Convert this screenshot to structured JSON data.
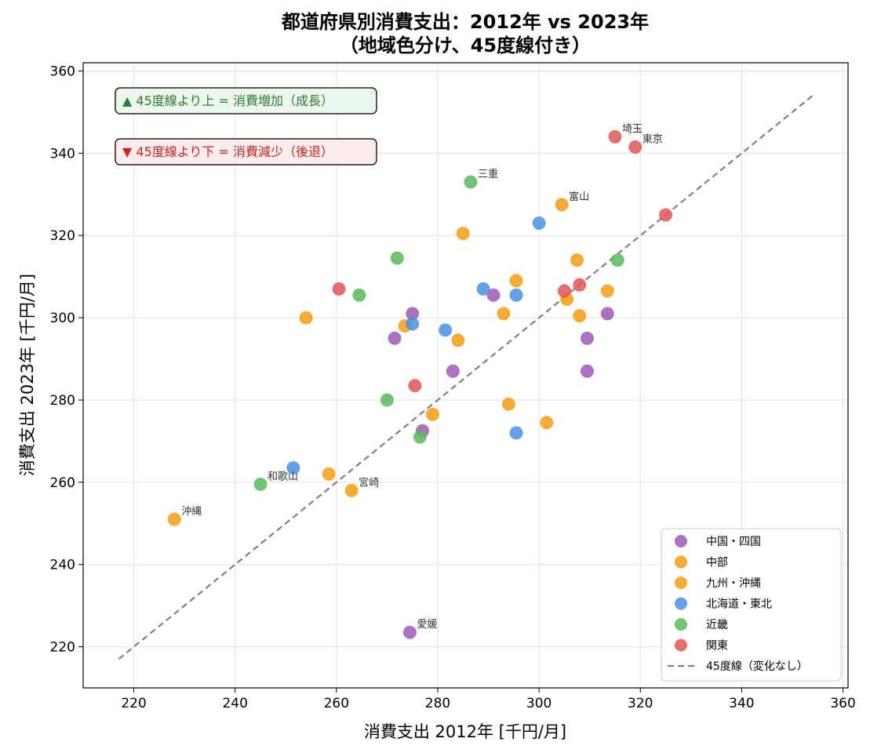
{
  "chart_data": {
    "type": "scatter",
    "title": "都道府県別消費支出：2012年 vs 2023年",
    "subtitle": "（地域色分け、45度線付き）",
    "xlabel": "消費支出 2012年 [千円/月]",
    "ylabel": "消費支出 2023年 [千円/月]",
    "xlim": [
      210,
      361
    ],
    "ylim": [
      210,
      362
    ],
    "xticks": [
      220,
      240,
      260,
      280,
      300,
      320,
      340,
      360
    ],
    "yticks": [
      220,
      240,
      260,
      280,
      300,
      320,
      340,
      360
    ],
    "grid": true,
    "legend_position": "lower-right",
    "reference_line": {
      "name": "45度線（変化なし）",
      "from": [
        217,
        217
      ],
      "to": [
        354.5,
        354.5
      ],
      "color": "#808080"
    },
    "annotations": [
      {
        "text": "▲ 45度線より上 = 消費増加（成長）",
        "color": "#2e7d32",
        "fill": "#edf6ec"
      },
      {
        "text": "▼ 45度線より下 = 消費減少（後退）",
        "color": "#c62828",
        "fill": "#fdecec"
      }
    ],
    "series": [
      {
        "name": "中国・四国",
        "color": "#9b59b6",
        "points": [
          {
            "x": 275,
            "y": 301
          },
          {
            "x": 271.5,
            "y": 295
          },
          {
            "x": 277,
            "y": 272.5
          },
          {
            "x": 283,
            "y": 287
          },
          {
            "x": 291,
            "y": 305.5
          },
          {
            "x": 313.5,
            "y": 301
          },
          {
            "x": 309.5,
            "y": 295
          },
          {
            "x": 309.5,
            "y": 287
          },
          {
            "x": 274.5,
            "y": 223.5,
            "label": "愛媛"
          }
        ]
      },
      {
        "name": "中部",
        "color": "#f39c12",
        "points": [
          {
            "x": 254,
            "y": 300
          },
          {
            "x": 273.5,
            "y": 298
          },
          {
            "x": 285,
            "y": 320.5
          },
          {
            "x": 284,
            "y": 294.5
          },
          {
            "x": 295.5,
            "y": 309
          },
          {
            "x": 293,
            "y": 301
          },
          {
            "x": 304.5,
            "y": 327.5,
            "label": "富山"
          },
          {
            "x": 307.5,
            "y": 314
          },
          {
            "x": 305.5,
            "y": 304.5
          },
          {
            "x": 308,
            "y": 300.5
          }
        ]
      },
      {
        "name": "九州・沖縄",
        "color": "#f39c12",
        "points": [
          {
            "x": 228,
            "y": 251,
            "label": "沖縄"
          },
          {
            "x": 258.5,
            "y": 262
          },
          {
            "x": 263,
            "y": 258,
            "label": "宮崎"
          },
          {
            "x": 279,
            "y": 276.5
          },
          {
            "x": 294,
            "y": 279
          },
          {
            "x": 301.5,
            "y": 274.5
          },
          {
            "x": 313.5,
            "y": 306.5
          }
        ]
      },
      {
        "name": "北海道・東北",
        "color": "#4a90e2",
        "points": [
          {
            "x": 251.5,
            "y": 263.5
          },
          {
            "x": 275,
            "y": 298.5
          },
          {
            "x": 281.5,
            "y": 297
          },
          {
            "x": 289,
            "y": 307
          },
          {
            "x": 295.5,
            "y": 305.5
          },
          {
            "x": 300,
            "y": 323
          },
          {
            "x": 295.5,
            "y": 272
          }
        ]
      },
      {
        "name": "近畿",
        "color": "#5cb85c",
        "points": [
          {
            "x": 245,
            "y": 259.5,
            "label": "和歌山"
          },
          {
            "x": 264.5,
            "y": 305.5
          },
          {
            "x": 272,
            "y": 314.5
          },
          {
            "x": 270,
            "y": 280
          },
          {
            "x": 276.5,
            "y": 271
          },
          {
            "x": 286.5,
            "y": 333,
            "label": "三重"
          },
          {
            "x": 315.5,
            "y": 314
          }
        ]
      },
      {
        "name": "関東",
        "color": "#e05555",
        "points": [
          {
            "x": 260.5,
            "y": 307
          },
          {
            "x": 275.5,
            "y": 283.5
          },
          {
            "x": 305,
            "y": 306.5
          },
          {
            "x": 308,
            "y": 308
          },
          {
            "x": 315,
            "y": 344,
            "label": "埼玉"
          },
          {
            "x": 319,
            "y": 341.5,
            "label": "東京"
          },
          {
            "x": 325,
            "y": 325
          }
        ]
      }
    ]
  }
}
